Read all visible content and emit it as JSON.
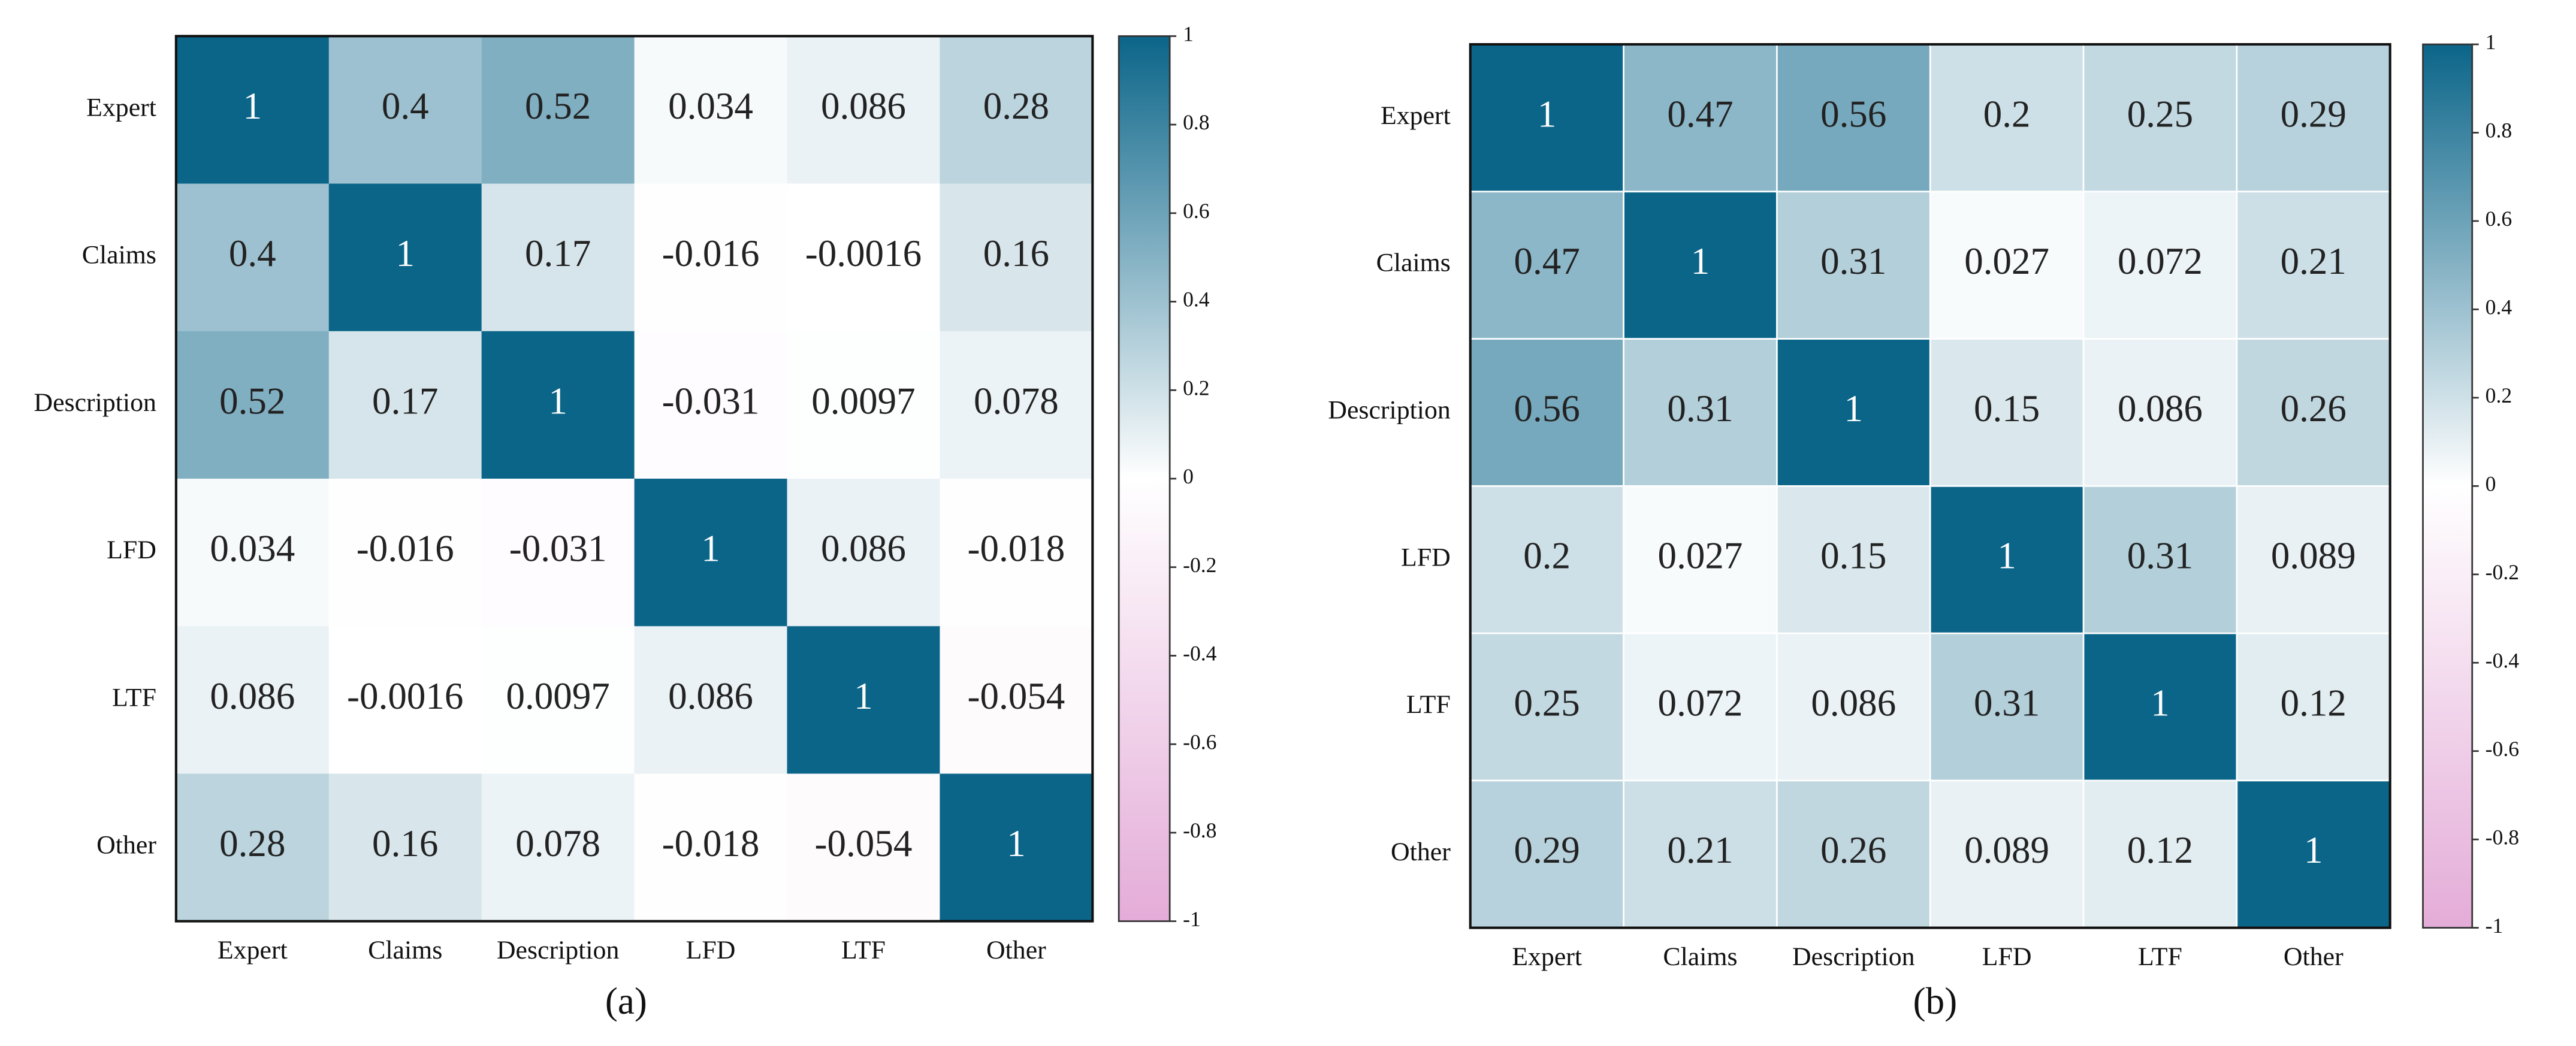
{
  "chart_data": [
    {
      "type": "heatmap",
      "caption": "(a)",
      "x_categories": [
        "Expert",
        "Claims",
        "Description",
        "LFD",
        "LTF",
        "Other"
      ],
      "y_categories": [
        "Expert",
        "Claims",
        "Description",
        "LFD",
        "LTF",
        "Other"
      ],
      "values": [
        [
          1,
          0.4,
          0.52,
          0.034,
          0.086,
          0.28
        ],
        [
          0.4,
          1,
          0.17,
          -0.016,
          -0.0016,
          0.16
        ],
        [
          0.52,
          0.17,
          1,
          -0.031,
          0.0097,
          0.078
        ],
        [
          0.034,
          -0.016,
          -0.031,
          1,
          0.086,
          -0.018
        ],
        [
          0.086,
          -0.0016,
          0.0097,
          0.086,
          1,
          -0.054
        ],
        [
          0.28,
          0.16,
          0.078,
          -0.018,
          -0.054,
          1
        ]
      ],
      "zlim": [
        -1,
        1
      ],
      "zticks": [
        1,
        0.8,
        0.6,
        0.4,
        0.2,
        0,
        -0.2,
        -0.4,
        -0.6,
        -0.8,
        -1
      ],
      "colormap": [
        "#e4acd8",
        "#ffffff",
        "#0b6589"
      ]
    },
    {
      "type": "heatmap",
      "caption": "(b)",
      "x_categories": [
        "Expert",
        "Claims",
        "Description",
        "LFD",
        "LTF",
        "Other"
      ],
      "y_categories": [
        "Expert",
        "Claims",
        "Description",
        "LFD",
        "LTF",
        "Other"
      ],
      "values": [
        [
          1,
          0.47,
          0.56,
          0.2,
          0.25,
          0.29
        ],
        [
          0.47,
          1,
          0.31,
          0.027,
          0.072,
          0.21
        ],
        [
          0.56,
          0.31,
          1,
          0.15,
          0.086,
          0.26
        ],
        [
          0.2,
          0.027,
          0.15,
          1,
          0.31,
          0.089
        ],
        [
          0.25,
          0.072,
          0.086,
          0.31,
          1,
          0.12
        ],
        [
          0.29,
          0.21,
          0.26,
          0.089,
          0.12,
          1
        ]
      ],
      "zlim": [
        -1,
        1
      ],
      "zticks": [
        1,
        0.8,
        0.6,
        0.4,
        0.2,
        0,
        -0.2,
        -0.4,
        -0.6,
        -0.8,
        -1
      ],
      "colormap": [
        "#e4acd8",
        "#ffffff",
        "#0b6589"
      ]
    }
  ]
}
